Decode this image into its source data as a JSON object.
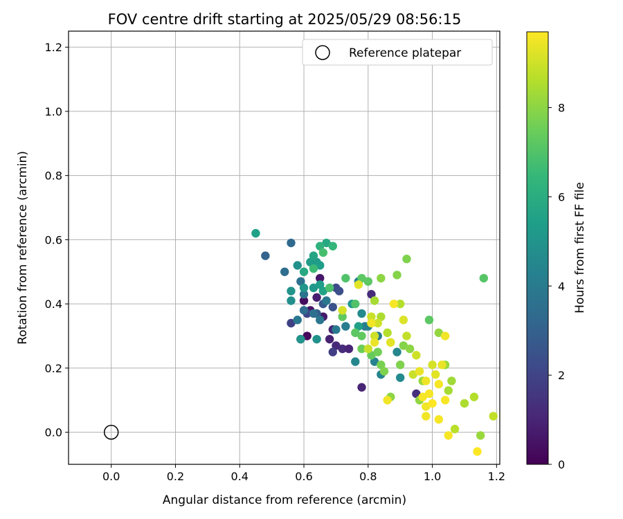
{
  "chart_data": {
    "type": "scatter",
    "title": "FOV centre drift starting at 2025/05/29 08:56:15",
    "xlabel": "Angular distance from reference (arcmin)",
    "ylabel": "Rotation from reference (arcmin)",
    "xlim": [
      -0.133,
      1.21
    ],
    "ylim": [
      -0.1,
      1.25
    ],
    "x_ticks": [
      "0.0",
      "0.2",
      "0.4",
      "0.6",
      "0.8",
      "1.0",
      "1.2"
    ],
    "y_ticks": [
      "0.0",
      "0.2",
      "0.4",
      "0.6",
      "0.8",
      "1.0",
      "1.2"
    ],
    "grid": true,
    "legend": {
      "position": "top-right",
      "entries": [
        {
          "label": "Reference platepar",
          "marker": "open-circle"
        }
      ]
    },
    "reference_point": {
      "x": 0.0,
      "y": 0.0
    },
    "colorbar": {
      "label": "Hours from first FF file",
      "colormap": "viridis",
      "range": [
        0,
        9.7
      ],
      "ticks": [
        "0",
        "2",
        "4",
        "6",
        "8"
      ]
    },
    "colormap_stops": [
      "#440154",
      "#482878",
      "#3e4989",
      "#31688e",
      "#26828e",
      "#1f9e89",
      "#35b779",
      "#6ece58",
      "#b5de2b",
      "#fde725"
    ],
    "reference_color": "#000000",
    "points": [
      {
        "x": 0.61,
        "y": 0.3,
        "h": 0.2
      },
      {
        "x": 0.59,
        "y": 0.29,
        "h": 0.4
      },
      {
        "x": 0.62,
        "y": 0.38,
        "h": 0.5
      },
      {
        "x": 0.6,
        "y": 0.41,
        "h": 0.3
      },
      {
        "x": 0.65,
        "y": 0.48,
        "h": 0.6
      },
      {
        "x": 0.64,
        "y": 0.42,
        "h": 0.8
      },
      {
        "x": 0.66,
        "y": 0.36,
        "h": 0.7
      },
      {
        "x": 0.68,
        "y": 0.29,
        "h": 0.9
      },
      {
        "x": 0.69,
        "y": 0.32,
        "h": 1.0
      },
      {
        "x": 0.7,
        "y": 0.27,
        "h": 1.1
      },
      {
        "x": 0.72,
        "y": 0.26,
        "h": 1.2
      },
      {
        "x": 0.74,
        "y": 0.26,
        "h": 1.0
      },
      {
        "x": 0.81,
        "y": 0.43,
        "h": 1.2
      },
      {
        "x": 0.78,
        "y": 0.14,
        "h": 1.0
      },
      {
        "x": 0.95,
        "y": 0.12,
        "h": 1.3
      },
      {
        "x": 0.69,
        "y": 0.25,
        "h": 1.8
      },
      {
        "x": 0.56,
        "y": 0.34,
        "h": 1.9
      },
      {
        "x": 0.61,
        "y": 0.37,
        "h": 2.0
      },
      {
        "x": 0.7,
        "y": 0.45,
        "h": 2.2
      },
      {
        "x": 0.71,
        "y": 0.44,
        "h": 2.4
      },
      {
        "x": 0.69,
        "y": 0.39,
        "h": 2.5
      },
      {
        "x": 0.66,
        "y": 0.4,
        "h": 2.7
      },
      {
        "x": 0.64,
        "y": 0.37,
        "h": 2.8
      },
      {
        "x": 0.48,
        "y": 0.55,
        "h": 3.1
      },
      {
        "x": 0.56,
        "y": 0.59,
        "h": 3.3
      },
      {
        "x": 0.54,
        "y": 0.5,
        "h": 3.5
      },
      {
        "x": 0.59,
        "y": 0.47,
        "h": 3.6
      },
      {
        "x": 0.6,
        "y": 0.43,
        "h": 3.7
      },
      {
        "x": 0.58,
        "y": 0.35,
        "h": 3.9
      },
      {
        "x": 0.6,
        "y": 0.38,
        "h": 3.4
      },
      {
        "x": 0.63,
        "y": 0.37,
        "h": 3.6
      },
      {
        "x": 0.65,
        "y": 0.35,
        "h": 3.8
      },
      {
        "x": 0.67,
        "y": 0.41,
        "h": 3.9
      },
      {
        "x": 0.7,
        "y": 0.32,
        "h": 4.0
      },
      {
        "x": 0.73,
        "y": 0.33,
        "h": 4.1
      },
      {
        "x": 0.77,
        "y": 0.47,
        "h": 4.2
      },
      {
        "x": 0.8,
        "y": 0.33,
        "h": 4.3
      },
      {
        "x": 0.83,
        "y": 0.3,
        "h": 4.0
      },
      {
        "x": 0.84,
        "y": 0.18,
        "h": 4.4
      },
      {
        "x": 0.82,
        "y": 0.22,
        "h": 4.3
      },
      {
        "x": 0.76,
        "y": 0.22,
        "h": 4.5
      },
      {
        "x": 0.78,
        "y": 0.37,
        "h": 4.6
      },
      {
        "x": 0.79,
        "y": 0.33,
        "h": 4.2
      },
      {
        "x": 0.89,
        "y": 0.25,
        "h": 4.5
      },
      {
        "x": 0.9,
        "y": 0.17,
        "h": 4.6
      },
      {
        "x": 0.56,
        "y": 0.41,
        "h": 4.8
      },
      {
        "x": 0.56,
        "y": 0.44,
        "h": 5.0
      },
      {
        "x": 0.58,
        "y": 0.52,
        "h": 4.9
      },
      {
        "x": 0.6,
        "y": 0.45,
        "h": 5.1
      },
      {
        "x": 0.63,
        "y": 0.45,
        "h": 5.2
      },
      {
        "x": 0.64,
        "y": 0.29,
        "h": 4.9
      },
      {
        "x": 0.59,
        "y": 0.29,
        "h": 5.0
      },
      {
        "x": 0.62,
        "y": 0.53,
        "h": 5.3
      },
      {
        "x": 0.64,
        "y": 0.53,
        "h": 5.3
      },
      {
        "x": 0.65,
        "y": 0.52,
        "h": 5.4
      },
      {
        "x": 0.66,
        "y": 0.44,
        "h": 5.6
      },
      {
        "x": 0.65,
        "y": 0.46,
        "h": 5.4
      },
      {
        "x": 0.63,
        "y": 0.55,
        "h": 5.7
      },
      {
        "x": 0.67,
        "y": 0.59,
        "h": 5.8
      },
      {
        "x": 0.75,
        "y": 0.4,
        "h": 5.2
      },
      {
        "x": 0.77,
        "y": 0.33,
        "h": 5.5
      },
      {
        "x": 0.45,
        "y": 0.62,
        "h": 5.5
      },
      {
        "x": 0.6,
        "y": 0.5,
        "h": 5.8
      },
      {
        "x": 0.65,
        "y": 0.58,
        "h": 6.2
      },
      {
        "x": 0.69,
        "y": 0.58,
        "h": 6.4
      },
      {
        "x": 0.63,
        "y": 0.51,
        "h": 6.6
      },
      {
        "x": 0.66,
        "y": 0.56,
        "h": 6.8
      },
      {
        "x": 0.68,
        "y": 0.45,
        "h": 6.9
      },
      {
        "x": 0.73,
        "y": 0.48,
        "h": 7.0
      },
      {
        "x": 0.78,
        "y": 0.48,
        "h": 7.2
      },
      {
        "x": 0.8,
        "y": 0.47,
        "h": 7.2
      },
      {
        "x": 0.76,
        "y": 0.4,
        "h": 7.0
      },
      {
        "x": 0.72,
        "y": 0.36,
        "h": 7.3
      },
      {
        "x": 0.78,
        "y": 0.3,
        "h": 7.3
      },
      {
        "x": 0.78,
        "y": 0.26,
        "h": 7.5
      },
      {
        "x": 0.76,
        "y": 0.31,
        "h": 7.2
      },
      {
        "x": 0.81,
        "y": 0.24,
        "h": 7.4
      },
      {
        "x": 0.83,
        "y": 0.25,
        "h": 7.6
      },
      {
        "x": 0.84,
        "y": 0.21,
        "h": 7.7
      },
      {
        "x": 0.85,
        "y": 0.19,
        "h": 7.8
      },
      {
        "x": 0.87,
        "y": 0.11,
        "h": 8.0
      },
      {
        "x": 0.9,
        "y": 0.21,
        "h": 7.8
      },
      {
        "x": 0.91,
        "y": 0.27,
        "h": 7.9
      },
      {
        "x": 0.93,
        "y": 0.26,
        "h": 8.0
      },
      {
        "x": 0.96,
        "y": 0.1,
        "h": 8.1
      },
      {
        "x": 0.97,
        "y": 0.16,
        "h": 8.2
      },
      {
        "x": 0.99,
        "y": 0.35,
        "h": 7.2
      },
      {
        "x": 0.92,
        "y": 0.54,
        "h": 7.8
      },
      {
        "x": 0.89,
        "y": 0.49,
        "h": 7.9
      },
      {
        "x": 0.84,
        "y": 0.48,
        "h": 8.0
      },
      {
        "x": 1.16,
        "y": 0.48,
        "h": 7.1
      },
      {
        "x": 1.02,
        "y": 0.31,
        "h": 8.1
      },
      {
        "x": 1.04,
        "y": 0.21,
        "h": 8.2
      },
      {
        "x": 1.06,
        "y": 0.16,
        "h": 8.3
      },
      {
        "x": 1.05,
        "y": 0.13,
        "h": 8.4
      },
      {
        "x": 1.1,
        "y": 0.09,
        "h": 8.5
      },
      {
        "x": 1.13,
        "y": 0.11,
        "h": 8.6
      },
      {
        "x": 1.07,
        "y": 0.01,
        "h": 8.7
      },
      {
        "x": 1.15,
        "y": -0.01,
        "h": 8.2
      },
      {
        "x": 1.19,
        "y": 0.05,
        "h": 8.8
      },
      {
        "x": 0.82,
        "y": 0.41,
        "h": 8.4
      },
      {
        "x": 0.84,
        "y": 0.36,
        "h": 8.5
      },
      {
        "x": 0.86,
        "y": 0.31,
        "h": 8.6
      },
      {
        "x": 0.87,
        "y": 0.28,
        "h": 8.7
      },
      {
        "x": 0.9,
        "y": 0.4,
        "h": 8.6
      },
      {
        "x": 0.92,
        "y": 0.3,
        "h": 8.8
      },
      {
        "x": 0.94,
        "y": 0.18,
        "h": 8.9
      },
      {
        "x": 0.95,
        "y": 0.24,
        "h": 9.0
      },
      {
        "x": 0.81,
        "y": 0.36,
        "h": 8.9
      },
      {
        "x": 0.82,
        "y": 0.3,
        "h": 9.0
      },
      {
        "x": 0.8,
        "y": 0.26,
        "h": 8.9
      },
      {
        "x": 0.83,
        "y": 0.34,
        "h": 9.0
      },
      {
        "x": 0.72,
        "y": 0.38,
        "h": 9.1
      },
      {
        "x": 0.77,
        "y": 0.46,
        "h": 9.3
      },
      {
        "x": 0.88,
        "y": 0.4,
        "h": 9.6
      },
      {
        "x": 0.91,
        "y": 0.35,
        "h": 9.2
      },
      {
        "x": 0.87,
        "y": 0.28,
        "h": 9.3
      },
      {
        "x": 0.81,
        "y": 0.34,
        "h": 9.5
      },
      {
        "x": 0.82,
        "y": 0.28,
        "h": 9.4
      },
      {
        "x": 0.86,
        "y": 0.1,
        "h": 9.5
      },
      {
        "x": 0.96,
        "y": 0.19,
        "h": 9.4
      },
      {
        "x": 0.98,
        "y": 0.16,
        "h": 9.5
      },
      {
        "x": 1.0,
        "y": 0.21,
        "h": 9.1
      },
      {
        "x": 1.01,
        "y": 0.18,
        "h": 9.3
      },
      {
        "x": 1.02,
        "y": 0.15,
        "h": 9.6
      },
      {
        "x": 1.03,
        "y": 0.21,
        "h": 9.4
      },
      {
        "x": 1.04,
        "y": 0.1,
        "h": 9.6
      },
      {
        "x": 1.04,
        "y": 0.3,
        "h": 9.5
      },
      {
        "x": 0.97,
        "y": 0.11,
        "h": 9.6
      },
      {
        "x": 0.98,
        "y": 0.08,
        "h": 9.5
      },
      {
        "x": 0.99,
        "y": 0.12,
        "h": 9.6
      },
      {
        "x": 1.0,
        "y": 0.09,
        "h": 9.7
      },
      {
        "x": 0.98,
        "y": 0.05,
        "h": 9.5
      },
      {
        "x": 1.02,
        "y": 0.04,
        "h": 9.6
      },
      {
        "x": 1.05,
        "y": -0.01,
        "h": 9.6
      },
      {
        "x": 1.14,
        "y": -0.06,
        "h": 9.7
      }
    ]
  }
}
